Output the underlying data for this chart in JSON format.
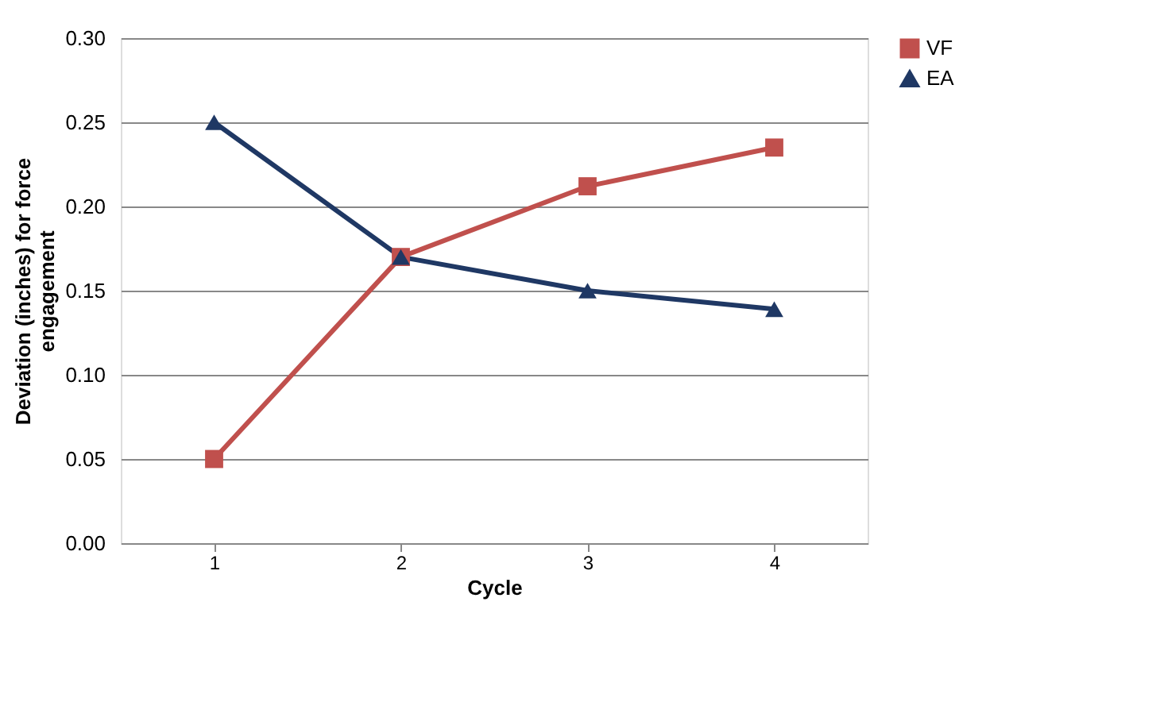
{
  "chart_data": {
    "type": "line",
    "xlabel": "Cycle",
    "ylabel": "Deviation (inches) for force engagement",
    "categories": [
      "1",
      "2",
      "3",
      "4"
    ],
    "series": [
      {
        "name": "VF",
        "color": "#c0504d",
        "marker": "square",
        "values": [
          0.05,
          0.17,
          0.212,
          0.235
        ]
      },
      {
        "name": "EA",
        "color": "#1f3864",
        "marker": "triangle",
        "values": [
          0.25,
          0.17,
          0.15,
          0.139
        ]
      }
    ],
    "ylim": [
      0,
      0.3
    ],
    "yticks": [
      {
        "value": 0,
        "label": "0.00"
      },
      {
        "value": 0.05,
        "label": "0.05"
      },
      {
        "value": 0.1,
        "label": "0.10"
      },
      {
        "value": 0.15,
        "label": "0.15"
      },
      {
        "value": 0.2,
        "label": "0.20"
      },
      {
        "value": 0.25,
        "label": "0.25"
      },
      {
        "value": 0.3,
        "label": "0.30"
      }
    ],
    "grid": "y",
    "legend": "right",
    "line_style": "solid"
  }
}
